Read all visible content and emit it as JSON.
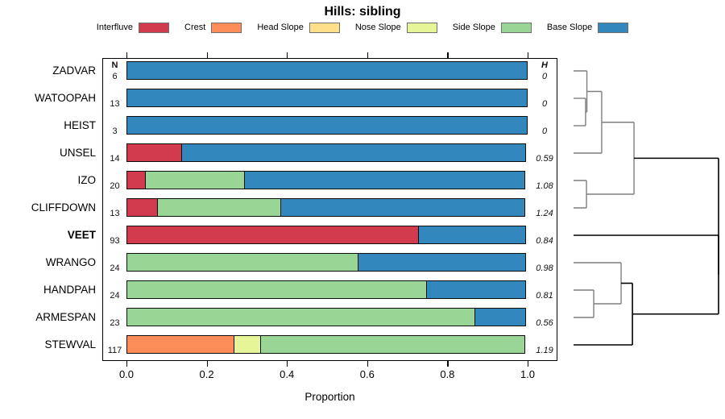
{
  "title": "Hills: sibling",
  "columns": {
    "n_header": "N",
    "h_header": "H"
  },
  "axis": {
    "xlabel": "Proportion",
    "tick_labels": [
      "0.0",
      "0.2",
      "0.4",
      "0.6",
      "0.8",
      "1.0"
    ],
    "tick_values": [
      0.0,
      0.2,
      0.4,
      0.6,
      0.8,
      1.0
    ]
  },
  "legend": [
    {
      "label": "Interfluve"
    },
    {
      "label": "Crest"
    },
    {
      "label": "Head Slope"
    },
    {
      "label": "Nose Slope"
    },
    {
      "label": "Side Slope"
    },
    {
      "label": "Base Slope"
    }
  ],
  "chart_data": {
    "type": "bar",
    "stacked": true,
    "orientation": "horizontal",
    "title": "Hills: sibling",
    "xlabel": "Proportion",
    "xlim": [
      0,
      1
    ],
    "series_order": [
      "Interfluve",
      "Crest",
      "Head Slope",
      "Nose Slope",
      "Side Slope",
      "Base Slope"
    ],
    "colors": {
      "Interfluve": "#D23B4E",
      "Crest": "#FC8D59",
      "Head Slope": "#FEE08B",
      "Nose Slope": "#E6F598",
      "Side Slope": "#99D594",
      "Base Slope": "#3288BD"
    },
    "rows": [
      {
        "name": "ZADVAR",
        "bold": false,
        "n": 6,
        "h": "0",
        "segments": [
          [
            "Base Slope",
            1.0
          ]
        ]
      },
      {
        "name": "WATOOPAH",
        "bold": false,
        "n": 13,
        "h": "0",
        "segments": [
          [
            "Base Slope",
            1.0
          ]
        ]
      },
      {
        "name": "HEIST",
        "bold": false,
        "n": 3,
        "h": "0",
        "segments": [
          [
            "Base Slope",
            1.0
          ]
        ]
      },
      {
        "name": "UNSEL",
        "bold": false,
        "n": 14,
        "h": "0.59",
        "segments": [
          [
            "Interfluve",
            0.14
          ],
          [
            "Base Slope",
            0.86
          ]
        ]
      },
      {
        "name": "IZO",
        "bold": false,
        "n": 20,
        "h": "1.08",
        "segments": [
          [
            "Interfluve",
            0.05
          ],
          [
            "Side Slope",
            0.25
          ],
          [
            "Base Slope",
            0.7
          ]
        ]
      },
      {
        "name": "CLIFFDOWN",
        "bold": false,
        "n": 13,
        "h": "1.24",
        "segments": [
          [
            "Interfluve",
            0.08
          ],
          [
            "Side Slope",
            0.31
          ],
          [
            "Base Slope",
            0.61
          ]
        ]
      },
      {
        "name": "VEET",
        "bold": true,
        "n": 93,
        "h": "0.84",
        "segments": [
          [
            "Interfluve",
            0.73
          ],
          [
            "Base Slope",
            0.27
          ]
        ]
      },
      {
        "name": "WRANGO",
        "bold": false,
        "n": 24,
        "h": "0.98",
        "segments": [
          [
            "Side Slope",
            0.58
          ],
          [
            "Base Slope",
            0.42
          ]
        ]
      },
      {
        "name": "HANDPAH",
        "bold": false,
        "n": 24,
        "h": "0.81",
        "segments": [
          [
            "Side Slope",
            0.75
          ],
          [
            "Base Slope",
            0.25
          ]
        ]
      },
      {
        "name": "ARMESPAN",
        "bold": false,
        "n": 23,
        "h": "0.56",
        "segments": [
          [
            "Side Slope",
            0.87
          ],
          [
            "Base Slope",
            0.13
          ]
        ]
      },
      {
        "name": "STEWVAL",
        "bold": false,
        "n": 117,
        "h": "1.19",
        "segments": [
          [
            "Crest",
            0.27
          ],
          [
            "Nose Slope",
            0.07
          ],
          [
            "Side Slope",
            0.66
          ]
        ]
      }
    ],
    "dendrogram": {
      "note": "x is merge distance normalized: 0 at leaves, 1 at root",
      "merges": [
        {
          "id": "m1",
          "a": "WATOOPAH",
          "b": "HEIST",
          "x": 0.083
        },
        {
          "id": "m2",
          "a": "ZADVAR",
          "b": "m1",
          "x": 0.092
        },
        {
          "id": "m3",
          "a": "m2",
          "b": "UNSEL",
          "x": 0.194
        },
        {
          "id": "m4",
          "a": "IZO",
          "b": "CLIFFDOWN",
          "x": 0.089
        },
        {
          "id": "m5",
          "a": "m3",
          "b": "m4",
          "x": 0.417
        },
        {
          "id": "m6",
          "a": "HANDPAH",
          "b": "ARMESPAN",
          "x": 0.139
        },
        {
          "id": "m7",
          "a": "WRANGO",
          "b": "m6",
          "x": 0.328
        },
        {
          "id": "m8",
          "a": "m7",
          "b": "STEWVAL",
          "x": 0.406
        },
        {
          "id": "m9",
          "a": "VEET",
          "b": "m8",
          "x": 1.0
        },
        {
          "id": "root",
          "a": "m5",
          "b": "m9",
          "x": 1.0
        }
      ]
    }
  }
}
